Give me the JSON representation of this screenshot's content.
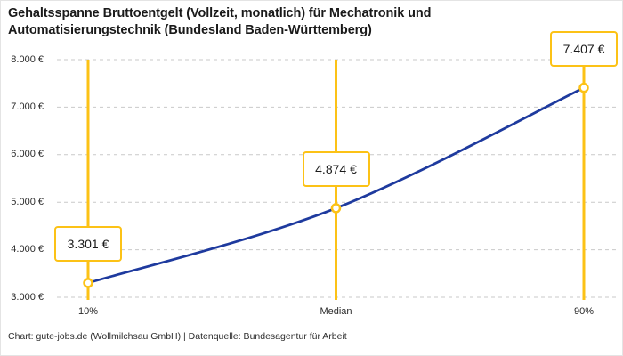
{
  "header": {
    "title_lines": [
      "Gehaltsspanne Bruttoentgelt (Vollzeit, monatlich) für Mechatronik und",
      "Automatisierungstechnik (Bundesland Baden-Württemberg)"
    ]
  },
  "footer": {
    "text": "Chart: gute-jobs.de (Wollmilchsau GmbH) | Datenquelle: Bundesagentur für Arbeit"
  },
  "chart_data": {
    "type": "line",
    "title": "Gehaltsspanne Bruttoentgelt (Vollzeit, monatlich) für Mechatronik und Automatisierungstechnik (Bundesland Baden-Württemberg)",
    "categories": [
      "10%",
      "Median",
      "90%"
    ],
    "points": [
      {
        "x_label": "10%",
        "value": 3301,
        "value_label": "3.301 €"
      },
      {
        "x_label": "Median",
        "value": 4874,
        "value_label": "4.874 €"
      },
      {
        "x_label": "90%",
        "value": 7407,
        "value_label": "7.407 €"
      }
    ],
    "ylim": [
      3000,
      8000
    ],
    "yticks": [
      {
        "value": 3000,
        "label": "3.000 €"
      },
      {
        "value": 4000,
        "label": "4.000 €"
      },
      {
        "value": 5000,
        "label": "5.000 €"
      },
      {
        "value": 6000,
        "label": "6.000 €"
      },
      {
        "value": 7000,
        "label": "7.000 €"
      },
      {
        "value": 8000,
        "label": "8.000 €"
      }
    ],
    "grid": "horizontal-dashed",
    "legend": "none",
    "colors": {
      "line": "#1e3a9e",
      "accent": "#fcc216",
      "gridline": "#c9c9c9",
      "marker_fill": "#ffffff",
      "text": "#1a1a1a"
    }
  }
}
